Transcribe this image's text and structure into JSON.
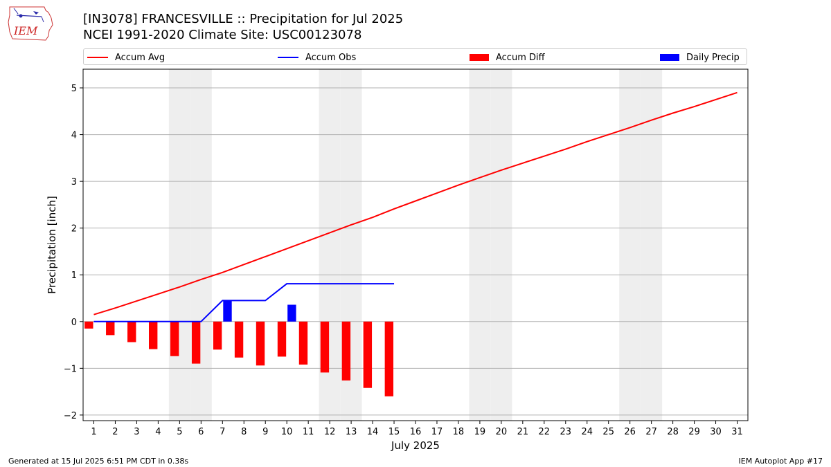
{
  "header": {
    "title_line1": "[IN3078] FRANCESVILLE :: Precipitation for Jul 2025",
    "title_line2": "NCEI 1991-2020 Climate Site: USC00123078",
    "logo_text": "IEM"
  },
  "legend": [
    {
      "label": "Accum Avg",
      "kind": "line",
      "color": "#ff0000"
    },
    {
      "label": "Accum Obs",
      "kind": "line",
      "color": "#0000ff"
    },
    {
      "label": "Accum Diff",
      "kind": "box",
      "color": "#ff0000"
    },
    {
      "label": "Daily Precip",
      "kind": "box",
      "color": "#0000ff"
    }
  ],
  "footer": {
    "left": "Generated at 15 Jul 2025 6:51 PM CDT in 0.38s",
    "right": "IEM Autoplot App #17"
  },
  "chart_data": {
    "type": "bar",
    "xlabel": "July 2025",
    "ylabel": "Precipitation [inch]",
    "ylim": [
      -2.12,
      5.4
    ],
    "yticks": [
      -2,
      -1,
      0,
      1,
      2,
      3,
      4,
      5
    ],
    "ytick_labels": [
      "−2",
      "−1",
      "0",
      "1",
      "2",
      "3",
      "4",
      "5"
    ],
    "days": [
      1,
      2,
      3,
      4,
      5,
      6,
      7,
      8,
      9,
      10,
      11,
      12,
      13,
      14,
      15,
      16,
      17,
      18,
      19,
      20,
      21,
      22,
      23,
      24,
      25,
      26,
      27,
      28,
      29,
      30,
      31
    ],
    "weekend_days": [
      5,
      6,
      12,
      13,
      19,
      20,
      26,
      27
    ],
    "grid": "horizontal",
    "series": [
      {
        "name": "Accum Avg",
        "type": "line",
        "color": "#ff0000",
        "values": [
          0.15,
          0.29,
          0.44,
          0.59,
          0.74,
          0.9,
          1.05,
          1.22,
          1.39,
          1.56,
          1.73,
          1.9,
          2.07,
          2.23,
          2.41,
          2.58,
          2.75,
          2.92,
          3.08,
          3.24,
          3.39,
          3.54,
          3.69,
          3.85,
          4.0,
          4.15,
          4.31,
          4.46,
          4.6,
          4.75,
          4.9
        ]
      },
      {
        "name": "Accum Obs",
        "type": "line",
        "color": "#0000ff",
        "values": [
          0,
          0,
          0,
          0,
          0,
          0,
          0.45,
          0.45,
          0.45,
          0.81,
          0.81,
          0.81,
          0.81,
          0.81,
          0.81
        ]
      },
      {
        "name": "Accum Diff",
        "type": "bar",
        "color": "#ff0000",
        "values": [
          -0.15,
          -0.29,
          -0.44,
          -0.59,
          -0.74,
          -0.9,
          -0.6,
          -0.77,
          -0.94,
          -0.75,
          -0.92,
          -1.09,
          -1.26,
          -1.42,
          -1.6
        ]
      },
      {
        "name": "Daily Precip",
        "type": "bar",
        "color": "#0000ff",
        "values": [
          0,
          0,
          0,
          0,
          0,
          0,
          0.45,
          0,
          0,
          0.36,
          0,
          0,
          0,
          0,
          0
        ]
      }
    ]
  }
}
